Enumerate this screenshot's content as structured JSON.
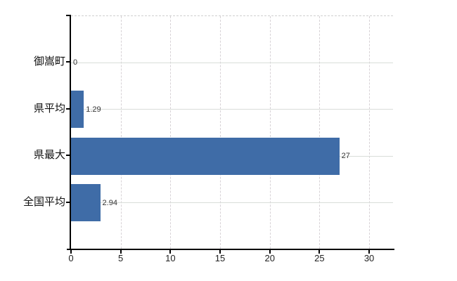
{
  "chart_data": {
    "type": "bar",
    "orientation": "horizontal",
    "title": "",
    "xlabel": "",
    "ylabel": "",
    "categories": [
      "御嵩町",
      "県平均",
      "県最大",
      "全国平均"
    ],
    "values": [
      0,
      1.29,
      27,
      2.94
    ],
    "value_labels": [
      "0",
      "1.29",
      "27",
      "2.94"
    ],
    "x_tick_labels": [
      "0",
      "5",
      "10",
      "15",
      "20",
      "25",
      "30"
    ],
    "x_tick_values": [
      0,
      5,
      10,
      15,
      20,
      25,
      30
    ],
    "xlim": [
      0,
      32.4
    ],
    "grid": true,
    "legend_position": "none",
    "colors": {
      "bar": "#3f6ca7",
      "axis": "#000000",
      "grid_horizontal": "#d9ddd9",
      "grid_vertical": "#d7d2d6",
      "plot_border_top": "#cfcfcf",
      "category_label": "#111111",
      "value_label": "#333333",
      "tick_label": "#222222",
      "background": "#ffffff"
    }
  }
}
